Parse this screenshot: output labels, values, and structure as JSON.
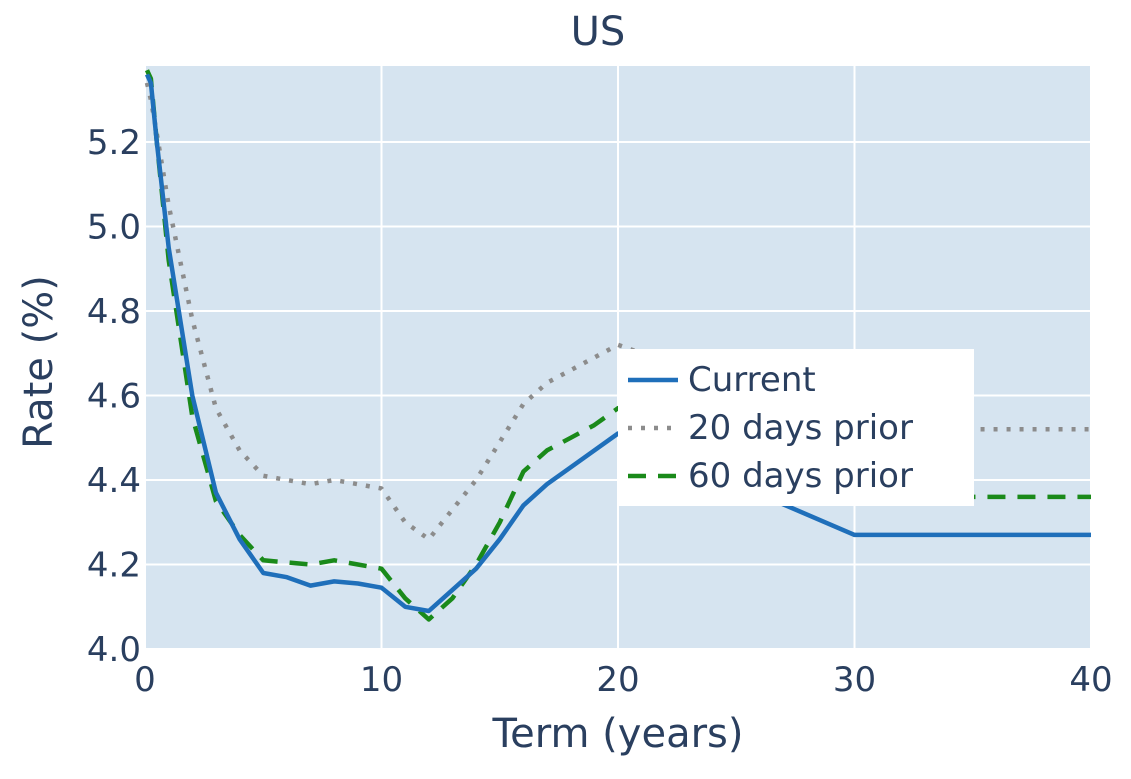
{
  "chart_data": {
    "type": "line",
    "title": "US",
    "xlabel": "Term (years)",
    "ylabel": "Rate (%)",
    "xlim": [
      0,
      40
    ],
    "ylim": [
      4.0,
      5.38
    ],
    "xticks": [
      0,
      10,
      20,
      30,
      40
    ],
    "yticks": [
      4.0,
      4.2,
      4.4,
      4.6,
      4.8,
      5.0,
      5.2
    ],
    "ytick_labels": [
      "4.0",
      "4.2",
      "4.4",
      "4.6",
      "4.8",
      "5.0",
      "5.2"
    ],
    "grid": true,
    "legend_position": "right-center",
    "plot_bg": "#d6e4f0",
    "series": [
      {
        "name": "Current",
        "color": "#1f6fba",
        "dash": "solid",
        "x": [
          0.083,
          0.25,
          0.5,
          1,
          2,
          3,
          4,
          5,
          6,
          7,
          8,
          9,
          10,
          11,
          12,
          13,
          14,
          15,
          16,
          17,
          18,
          19,
          20,
          30,
          40
        ],
        "y": [
          5.36,
          5.34,
          5.2,
          4.95,
          4.6,
          4.37,
          4.26,
          4.18,
          4.17,
          4.15,
          4.16,
          4.155,
          4.145,
          4.1,
          4.09,
          4.14,
          4.19,
          4.26,
          4.34,
          4.39,
          4.43,
          4.47,
          4.51,
          4.27,
          4.27
        ]
      },
      {
        "name": "20 days prior",
        "color": "#8c8c8c",
        "dash": "dot",
        "x": [
          0.083,
          0.25,
          0.5,
          1,
          2,
          3,
          4,
          5,
          6,
          7,
          8,
          9,
          10,
          11,
          12,
          13,
          14,
          15,
          16,
          17,
          18,
          19,
          20,
          30,
          40
        ],
        "y": [
          5.34,
          5.3,
          5.22,
          5.05,
          4.78,
          4.57,
          4.47,
          4.41,
          4.4,
          4.39,
          4.4,
          4.39,
          4.38,
          4.3,
          4.26,
          4.33,
          4.4,
          4.49,
          4.58,
          4.63,
          4.66,
          4.69,
          4.72,
          4.52,
          4.52
        ]
      },
      {
        "name": "60 days prior",
        "color": "#1a8a1a",
        "dash": "dash",
        "x": [
          0.083,
          0.25,
          0.5,
          1,
          2,
          3,
          4,
          5,
          6,
          7,
          8,
          9,
          10,
          11,
          12,
          13,
          14,
          15,
          16,
          17,
          18,
          19,
          20,
          30,
          40
        ],
        "y": [
          5.37,
          5.35,
          5.2,
          4.92,
          4.55,
          4.35,
          4.27,
          4.21,
          4.205,
          4.2,
          4.21,
          4.2,
          4.19,
          4.12,
          4.07,
          4.12,
          4.2,
          4.3,
          4.42,
          4.47,
          4.5,
          4.53,
          4.57,
          4.36,
          4.36
        ]
      }
    ]
  }
}
